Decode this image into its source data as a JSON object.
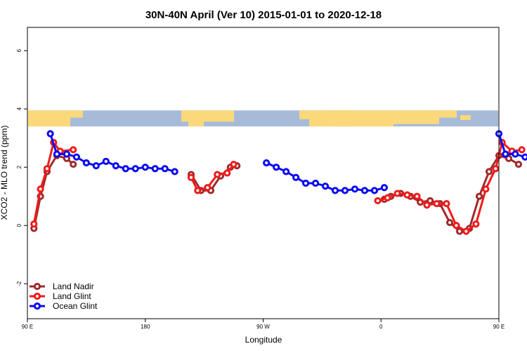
{
  "chart_data": {
    "type": "line",
    "title": "30N-40N April (Ver 10)   2015-01-01 to 2020-12-18",
    "xlabel": "Longitude",
    "ylabel": "XCO2 - MLO trend (ppm)",
    "xlim": [
      90,
      450
    ],
    "ylim": [
      -3.2,
      6.8
    ],
    "x_ticks": [
      {
        "value": 90,
        "label": "90 E"
      },
      {
        "value": 180,
        "label": "180"
      },
      {
        "value": 270,
        "label": "90 W"
      },
      {
        "value": 360,
        "label": "0"
      },
      {
        "value": 450,
        "label": "90 E"
      },
      {
        "value": 540,
        "label": "180"
      }
    ],
    "y_ticks": [
      {
        "value": -2,
        "label": "-2"
      },
      {
        "value": 0,
        "label": "0"
      },
      {
        "value": 2,
        "label": "2"
      },
      {
        "value": 4,
        "label": "4"
      },
      {
        "value": 6,
        "label": "6"
      }
    ],
    "map_band": {
      "ymin": 3.4,
      "ymax": 3.95,
      "ocean_color": "#a7bbd9",
      "land_color": "#fbd97a"
    },
    "legend_position": "bottom-left",
    "series": [
      {
        "name": "Land Nadir",
        "color": "#9e2a2b",
        "segments": [
          [
            [
              95,
              -0.1
            ],
            [
              100,
              1.0
            ],
            [
              105,
              1.85
            ],
            [
              112.5,
              2.4
            ],
            [
              120,
              2.3
            ],
            [
              125,
              2.1
            ]
          ],
          [
            [
              215,
              1.75
            ],
            [
              222.5,
              1.2
            ],
            [
              230,
              1.2
            ],
            [
              237.5,
              1.7
            ],
            [
              245,
              2.0
            ],
            [
              250,
              2.05
            ]
          ],
          [
            [
              362.5,
              0.9
            ],
            [
              367.5,
              1.0
            ],
            [
              375,
              1.1
            ],
            [
              382.5,
              1.0
            ],
            [
              390,
              0.8
            ],
            [
              397.5,
              0.85
            ],
            [
              405,
              0.75
            ],
            [
              412.5,
              0.1
            ],
            [
              420,
              -0.2
            ],
            [
              427.5,
              -0.1
            ],
            [
              435,
              1.0
            ],
            [
              442.5,
              1.85
            ],
            [
              450,
              2.4
            ],
            [
              457.5,
              2.3
            ],
            [
              465,
              2.1
            ]
          ]
        ]
      },
      {
        "name": "Land Glint",
        "color": "#ee1b1b",
        "segments": [
          [
            [
              95,
              0.05
            ],
            [
              100,
              1.25
            ],
            [
              105,
              1.95
            ],
            [
              110,
              2.85
            ],
            [
              115,
              2.55
            ],
            [
              125,
              2.6
            ]
          ],
          [
            [
              215,
              1.65
            ],
            [
              220,
              1.2
            ],
            [
              227.5,
              1.3
            ],
            [
              235,
              1.75
            ],
            [
              242.5,
              1.8
            ],
            [
              247.5,
              2.1
            ]
          ],
          [
            [
              357.5,
              0.85
            ],
            [
              365,
              0.95
            ],
            [
              372.5,
              1.1
            ],
            [
              380,
              1.05
            ],
            [
              387.5,
              1.0
            ],
            [
              395,
              0.7
            ],
            [
              402.5,
              0.75
            ],
            [
              410,
              0.75
            ],
            [
              417.5,
              0.0
            ],
            [
              425,
              -0.2
            ],
            [
              432.5,
              0.05
            ],
            [
              440,
              1.25
            ],
            [
              447.5,
              1.95
            ],
            [
              452.5,
              2.85
            ],
            [
              460,
              2.55
            ],
            [
              467.5,
              2.6
            ]
          ]
        ]
      },
      {
        "name": "Ocean Glint",
        "color": "#0b0bf0",
        "segments": [
          [
            [
              107.5,
              3.15
            ],
            [
              112.5,
              2.45
            ],
            [
              120,
              2.45
            ],
            [
              127.5,
              2.35
            ],
            [
              135,
              2.15
            ],
            [
              142.5,
              2.05
            ],
            [
              150,
              2.2
            ],
            [
              157.5,
              2.05
            ],
            [
              165,
              1.95
            ],
            [
              172.5,
              1.95
            ],
            [
              180,
              2.0
            ],
            [
              187.5,
              1.95
            ],
            [
              195,
              1.95
            ],
            [
              202.5,
              1.85
            ]
          ],
          [
            [
              272.5,
              2.15
            ],
            [
              280,
              2.0
            ],
            [
              287.5,
              1.85
            ],
            [
              295,
              1.65
            ],
            [
              302.5,
              1.45
            ],
            [
              310,
              1.45
            ],
            [
              317.5,
              1.35
            ],
            [
              325,
              1.2
            ],
            [
              332.5,
              1.2
            ],
            [
              340,
              1.25
            ],
            [
              347.5,
              1.2
            ],
            [
              355,
              1.2
            ],
            [
              362.5,
              1.3
            ]
          ],
          [
            [
              450,
              3.15
            ],
            [
              455,
              2.45
            ],
            [
              462.5,
              2.45
            ],
            [
              470,
              2.35
            ],
            [
              477.5,
              2.15
            ],
            [
              485,
              2.05
            ],
            [
              492.5,
              2.2
            ]
          ]
        ]
      }
    ]
  }
}
